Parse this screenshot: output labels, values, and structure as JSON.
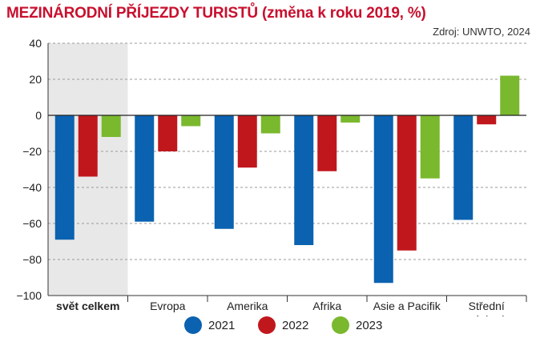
{
  "header": {
    "title": "MEZINÁRODNÍ PŘÍJEZDY TURISTŮ (změna k roku 2019, %)",
    "source": "Zdroj: UNWTO, 2024"
  },
  "chart_data": {
    "type": "bar",
    "categories": [
      "svět celkem",
      "Evropa",
      "Amerika",
      "Afrika",
      "Asie a Pacifik",
      "Střední\nvýchod"
    ],
    "category_bold": [
      true,
      false,
      false,
      false,
      false,
      false
    ],
    "highlight_category": 0,
    "series": [
      {
        "name": "2021",
        "color": "#0a62b0",
        "values": [
          -69,
          -59,
          -63,
          -72,
          -93,
          -58
        ]
      },
      {
        "name": "2022",
        "color": "#c0171d",
        "values": [
          -34,
          -20,
          -29,
          -31,
          -75,
          -5
        ]
      },
      {
        "name": "2023",
        "color": "#7ab82e",
        "values": [
          -12,
          -6,
          -10,
          -4,
          -35,
          22
        ]
      }
    ],
    "ylim": [
      -100,
      40
    ],
    "yticks": [
      40,
      20,
      0,
      -20,
      -40,
      -60,
      -80,
      -100
    ],
    "ytick_labels": [
      "40",
      "20",
      "0",
      "−20",
      "−40",
      "−60",
      "−80",
      "−100"
    ],
    "grid": true,
    "legend_position": "bottom",
    "xlabel": "",
    "ylabel": ""
  }
}
